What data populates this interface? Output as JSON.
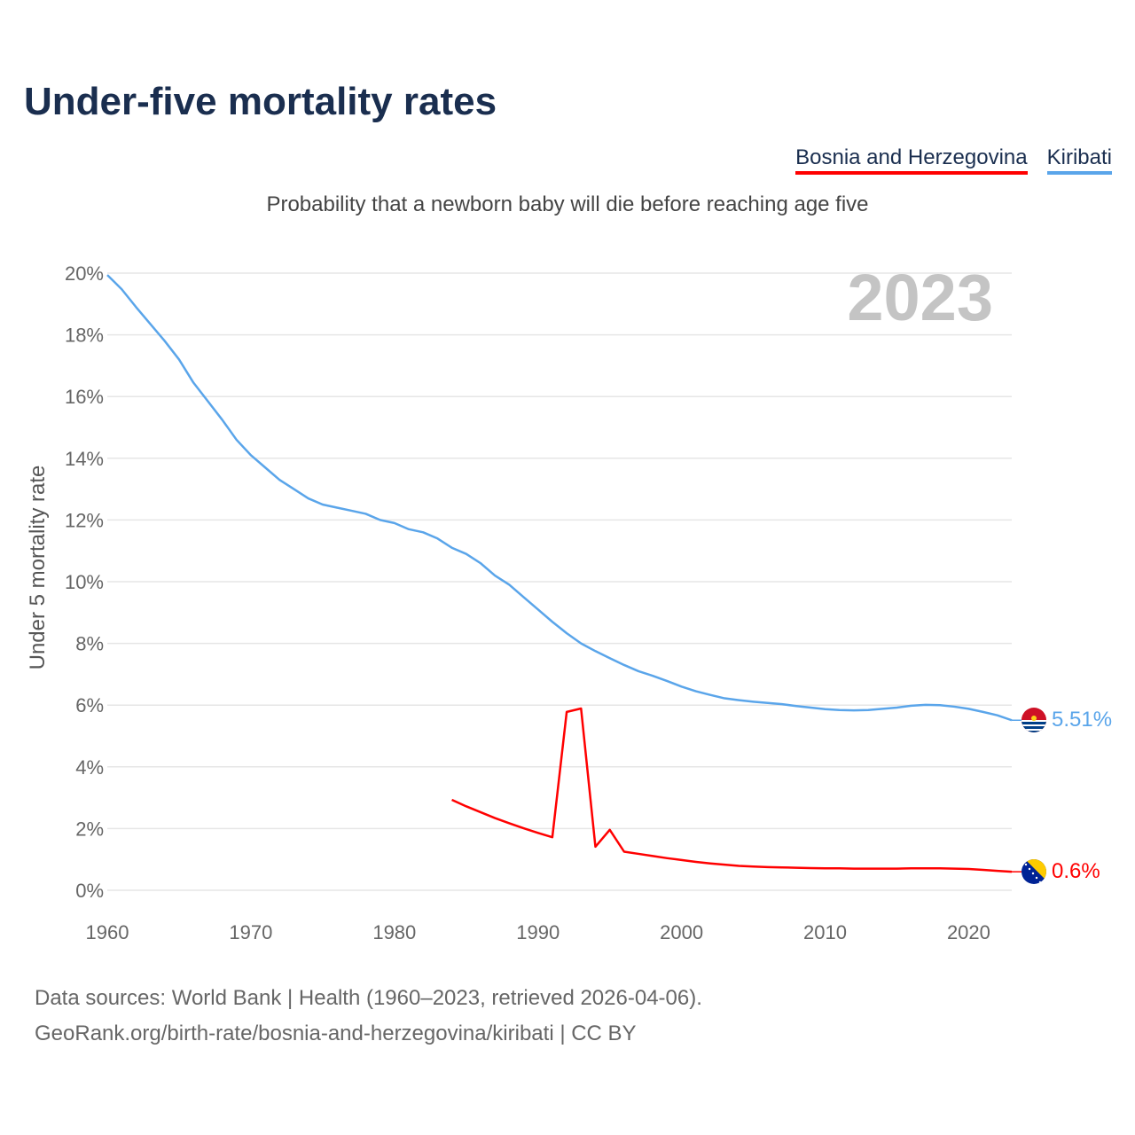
{
  "title": "Under-five mortality rates",
  "subtitle": "Probability that a newborn baby will die before reaching age five",
  "footer": {
    "line1": "Data sources: World Bank | Health (1960–2023, retrieved 2026-04-06).",
    "line2": "GeoRank.org/birth-rate/bosnia-and-herzegovina/kiribati | CC BY"
  },
  "chart_data": {
    "type": "line",
    "title": "Under-five mortality rates",
    "ylabel": "Under 5 mortality rate",
    "xlabel": "",
    "year_label": "2023",
    "xlim": [
      1960,
      2023
    ],
    "ylim": [
      0,
      20
    ],
    "xticks": [
      "1960",
      "1970",
      "1980",
      "1990",
      "2000",
      "2010",
      "2020"
    ],
    "yticks": [
      "0%",
      "2%",
      "4%",
      "6%",
      "8%",
      "10%",
      "12%",
      "14%",
      "16%",
      "18%",
      "20%"
    ],
    "grid": true,
    "legend_position": "top-right",
    "series": [
      {
        "name": "Bosnia and Herzegovina",
        "color": "#ff0000",
        "end_label": "0.6%",
        "flag": "bosnia-flag",
        "start": 1984,
        "values": [
          2.93,
          2.72,
          2.53,
          2.34,
          2.17,
          2.01,
          1.86,
          1.72,
          5.78,
          5.89,
          1.41,
          1.96,
          1.25,
          1.18,
          1.11,
          1.04,
          0.98,
          0.92,
          0.87,
          0.83,
          0.79,
          0.77,
          0.75,
          0.74,
          0.73,
          0.72,
          0.71,
          0.71,
          0.7,
          0.7,
          0.7,
          0.7,
          0.71,
          0.71,
          0.71,
          0.7,
          0.69,
          0.66,
          0.63,
          0.6
        ]
      },
      {
        "name": "Kiribati",
        "color": "#5aa5ea",
        "end_label": "5.51%",
        "flag": "kiribati-flag",
        "start": 1960,
        "values": [
          19.94,
          19.48,
          18.9,
          18.35,
          17.8,
          17.2,
          16.45,
          15.85,
          15.25,
          14.6,
          14.1,
          13.7,
          13.3,
          13.0,
          12.7,
          12.5,
          12.4,
          12.3,
          12.2,
          12.0,
          11.9,
          11.7,
          11.6,
          11.4,
          11.1,
          10.9,
          10.6,
          10.2,
          9.9,
          9.5,
          9.1,
          8.7,
          8.33,
          8.0,
          7.75,
          7.52,
          7.3,
          7.1,
          6.95,
          6.78,
          6.6,
          6.45,
          6.33,
          6.22,
          6.16,
          6.11,
          6.07,
          6.03,
          5.97,
          5.92,
          5.87,
          5.84,
          5.83,
          5.84,
          5.88,
          5.92,
          5.98,
          6.01,
          6.0,
          5.95,
          5.88,
          5.78,
          5.67,
          5.51
        ]
      }
    ]
  }
}
